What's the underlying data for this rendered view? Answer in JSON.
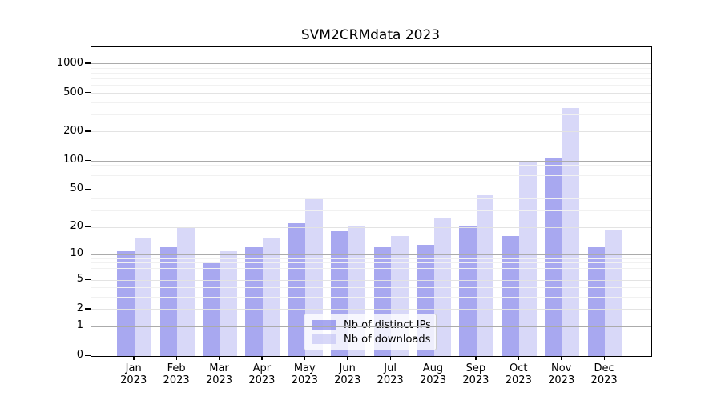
{
  "title": "SVM2CRMdata 2023",
  "chart_data": {
    "type": "bar",
    "title": "SVM2CRMdata 2023",
    "months": [
      "Jan",
      "Feb",
      "Mar",
      "Apr",
      "May",
      "Jun",
      "Jul",
      "Aug",
      "Sep",
      "Oct",
      "Nov",
      "Dec"
    ],
    "year": "2023",
    "categories": [
      "Jan 2023",
      "Feb 2023",
      "Mar 2023",
      "Apr 2023",
      "May 2023",
      "Jun 2023",
      "Jul 2023",
      "Aug 2023",
      "Sep 2023",
      "Oct 2023",
      "Nov 2023",
      "Dec 2023"
    ],
    "series": [
      {
        "name": "Nb of distinct IPs",
        "color": "#6e6ee6",
        "values": [
          11,
          12,
          8,
          12,
          22,
          18,
          12,
          13,
          21,
          16,
          107,
          12
        ]
      },
      {
        "name": "Nb of downloads",
        "color": "#bebef3",
        "values": [
          15,
          20,
          11,
          15,
          40,
          21,
          16,
          25,
          44,
          100,
          350,
          19
        ]
      }
    ],
    "bar_alpha": 0.6,
    "y_ticks": [
      0,
      1,
      2,
      5,
      10,
      20,
      50,
      100,
      200,
      500,
      1000
    ],
    "y_scale": "log10(1+value)",
    "ylim": [
      0,
      1459
    ],
    "grid": true,
    "legend_position": "lower center"
  },
  "colors": {
    "major_grid": "#ababab",
    "mid_grid": "#e3e3e3",
    "minor_grid": "#f1f1f1",
    "spine": "#000000",
    "background": "#ffffff"
  }
}
